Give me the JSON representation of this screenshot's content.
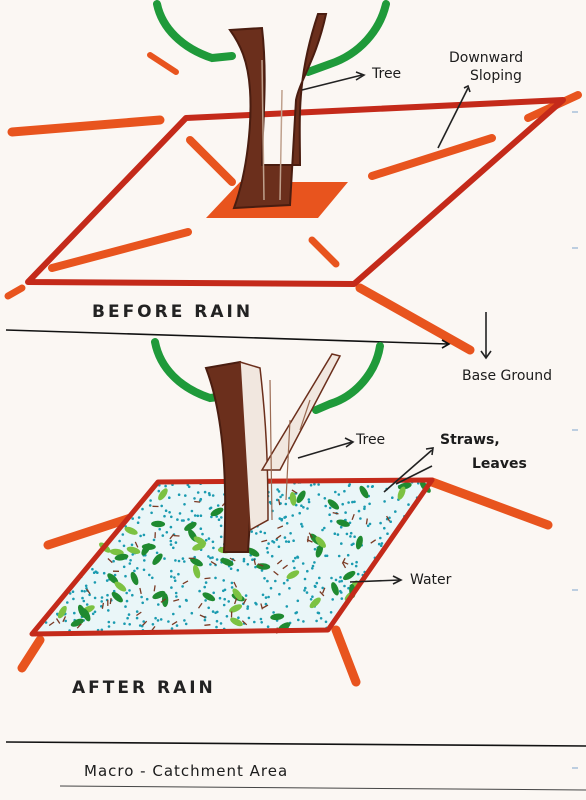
{
  "before": {
    "title": "BEFORE  RAIN",
    "labels": {
      "tree": "Tree",
      "slope_line1": "Downward",
      "slope_line2": "Sloping",
      "base": "Base Ground"
    }
  },
  "after": {
    "title": "AFTER  RAIN",
    "labels": {
      "tree": "Tree",
      "straws_line1": "Straws,",
      "straws_line2": "Leaves",
      "water": "Water"
    }
  },
  "caption": "Macro - Catchment   Area",
  "colors": {
    "border": "#c42a1a",
    "slope": "#e8541e",
    "trunk": "#6b2f1c",
    "foliage": "#1f9a3a",
    "water": "#1a9bb0",
    "leaf": "#3cab34",
    "straw": "#7a3a24",
    "paper": "#fbf7f3"
  }
}
